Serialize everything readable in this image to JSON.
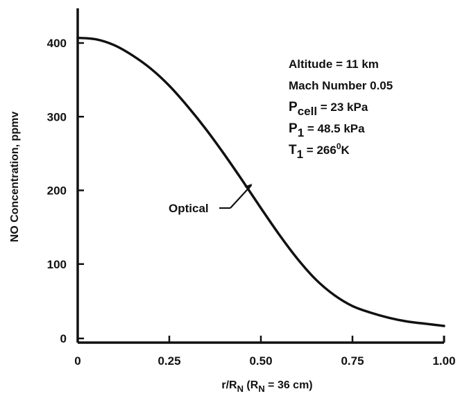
{
  "chart_data": {
    "type": "line",
    "title": "",
    "xlabel": "r/R",
    "xlabel_sub": "N",
    "xlabel_paren_open": " (R",
    "xlabel_paren_sub": "N",
    "xlabel_paren_rest": " = 36 cm)",
    "ylabel": "NO Concentration,  ppmv",
    "xlim": [
      0,
      1.0
    ],
    "ylim": [
      0,
      450
    ],
    "x_ticks": [
      0,
      0.25,
      0.5,
      0.75,
      1.0
    ],
    "x_tick_labels": [
      "0",
      "0.25",
      "0.50",
      "0.75",
      "1.00"
    ],
    "y_ticks": [
      0,
      100,
      200,
      300,
      400
    ],
    "y_tick_labels": [
      "0",
      "100",
      "200",
      "300",
      "400"
    ],
    "grid": false,
    "series": [
      {
        "name": "Optical",
        "x": [
          0,
          0.05,
          0.1,
          0.15,
          0.2,
          0.25,
          0.3,
          0.35,
          0.4,
          0.45,
          0.5,
          0.55,
          0.6,
          0.65,
          0.7,
          0.75,
          0.8,
          0.85,
          0.9,
          0.95,
          1.0
        ],
        "y": [
          407,
          405,
          397,
          383,
          365,
          342,
          314,
          283,
          249,
          213,
          176,
          140,
          107,
          79,
          58,
          43,
          34,
          27,
          22,
          19,
          16
        ]
      }
    ],
    "series_label_at": {
      "x": 0.48,
      "y": 210
    },
    "annotations": [
      {
        "main": "Altitude = 11 km"
      },
      {
        "main": "Mach Number 0.05"
      },
      {
        "main": "P",
        "sub": "cell",
        "rest": " = 23 kPa"
      },
      {
        "main": "P",
        "sub": "1",
        "rest": " = 48.5 kPa"
      },
      {
        "main": "T",
        "sub": "1",
        "rest": " = 266",
        "sup": "0",
        "rest2": "K"
      }
    ]
  }
}
